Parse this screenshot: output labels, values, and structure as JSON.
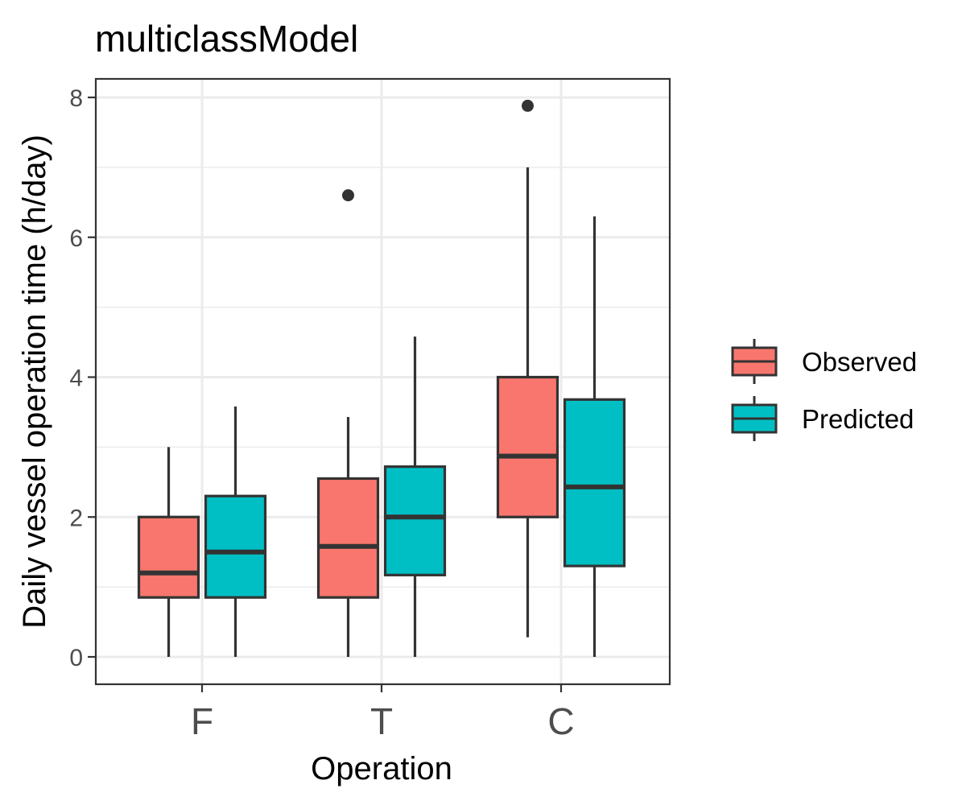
{
  "chart_data": {
    "type": "boxplot",
    "title": "multiclassModel",
    "xlabel": "Operation",
    "ylabel": "Daily vessel operation time (h/day)",
    "ylim": [
      -0.4,
      8.3
    ],
    "yticks": [
      0,
      2,
      4,
      6,
      8
    ],
    "grid": true,
    "legend_position": "right",
    "categories": [
      "F",
      "T",
      "C"
    ],
    "series": [
      {
        "name": "Observed",
        "color": "#F8766D",
        "boxes": [
          {
            "category": "F",
            "whisker_low": 0.0,
            "q1": 0.85,
            "median": 1.2,
            "q3": 2.0,
            "whisker_high": 3.0,
            "outliers": []
          },
          {
            "category": "T",
            "whisker_low": 0.0,
            "q1": 0.85,
            "median": 1.58,
            "q3": 2.55,
            "whisker_high": 3.43,
            "outliers": [
              6.6
            ]
          },
          {
            "category": "C",
            "whisker_low": 0.28,
            "q1": 2.0,
            "median": 2.87,
            "q3": 4.0,
            "whisker_high": 7.0,
            "outliers": [
              7.88
            ]
          }
        ]
      },
      {
        "name": "Predicted",
        "color": "#00BFC4",
        "boxes": [
          {
            "category": "F",
            "whisker_low": 0.0,
            "q1": 0.85,
            "median": 1.5,
            "q3": 2.3,
            "whisker_high": 3.58,
            "outliers": []
          },
          {
            "category": "T",
            "whisker_low": 0.0,
            "q1": 1.17,
            "median": 2.0,
            "q3": 2.72,
            "whisker_high": 4.58,
            "outliers": []
          },
          {
            "category": "C",
            "whisker_low": 0.0,
            "q1": 1.3,
            "median": 2.43,
            "q3": 3.68,
            "whisker_high": 6.3,
            "outliers": []
          }
        ]
      }
    ]
  }
}
